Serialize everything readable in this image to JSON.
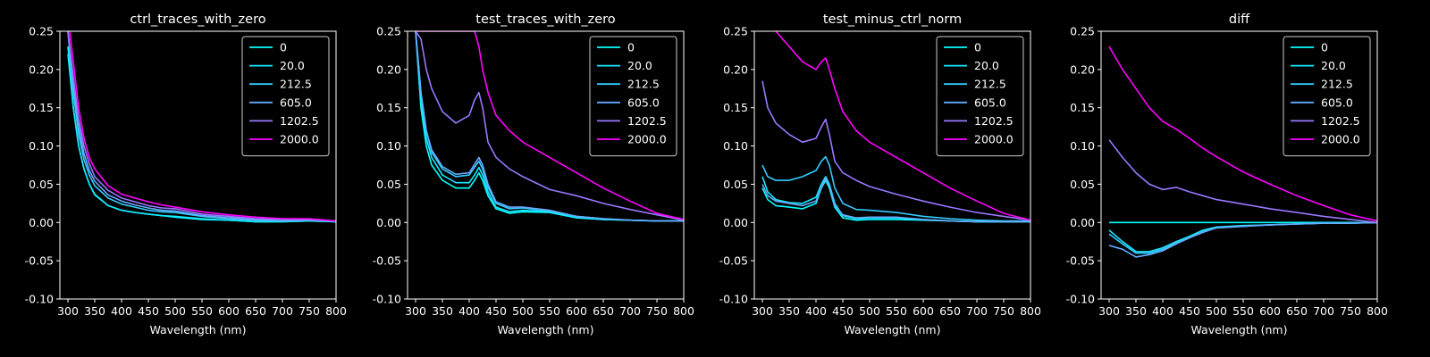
{
  "chart_data": [
    {
      "type": "line",
      "title": "ctrl_traces_with_zero",
      "xlabel": "Wavelength (nm)",
      "ylabel": "",
      "xlim": [
        285,
        800
      ],
      "ylim": [
        -0.1,
        0.25
      ],
      "xticks": [
        300,
        350,
        400,
        450,
        500,
        550,
        600,
        650,
        700,
        750,
        800
      ],
      "yticks": [
        -0.1,
        -0.05,
        0.0,
        0.05,
        0.1,
        0.15,
        0.2,
        0.25
      ],
      "legend_position": "top-right",
      "x": [
        300,
        310,
        320,
        330,
        340,
        350,
        375,
        400,
        425,
        450,
        475,
        500,
        550,
        600,
        650,
        700,
        750,
        800
      ],
      "series": [
        {
          "name": "0",
          "color": "#00ffff",
          "values": [
            0.23,
            0.15,
            0.1,
            0.07,
            0.05,
            0.037,
            0.022,
            0.016,
            0.013,
            0.011,
            0.009,
            0.007,
            0.004,
            0.003,
            0.001,
            0.001,
            0.002,
            0.001
          ]
        },
        {
          "name": "20.0",
          "color": "#16e9ff",
          "values": [
            0.22,
            0.15,
            0.1,
            0.07,
            0.05,
            0.036,
            0.022,
            0.016,
            0.013,
            0.011,
            0.009,
            0.008,
            0.005,
            0.003,
            0.001,
            0.001,
            0.002,
            0.001
          ]
        },
        {
          "name": "212.5",
          "color": "#33ccff",
          "values": [
            0.25,
            0.17,
            0.115,
            0.082,
            0.062,
            0.048,
            0.032,
            0.024,
            0.02,
            0.016,
            0.014,
            0.013,
            0.008,
            0.005,
            0.003,
            0.002,
            0.003,
            0.001
          ]
        },
        {
          "name": "605.0",
          "color": "#66aaff",
          "values": [
            0.25,
            0.18,
            0.125,
            0.09,
            0.068,
            0.054,
            0.036,
            0.028,
            0.023,
            0.019,
            0.016,
            0.015,
            0.009,
            0.006,
            0.004,
            0.003,
            0.003,
            0.002
          ]
        },
        {
          "name": "1202.5",
          "color": "#9a77ff",
          "values": [
            0.25,
            0.19,
            0.135,
            0.1,
            0.077,
            0.06,
            0.042,
            0.032,
            0.027,
            0.022,
            0.019,
            0.018,
            0.011,
            0.008,
            0.005,
            0.004,
            0.004,
            0.002
          ]
        },
        {
          "name": "2000.0",
          "color": "#ff00ff",
          "values": [
            0.27,
            0.21,
            0.15,
            0.11,
            0.085,
            0.07,
            0.048,
            0.037,
            0.032,
            0.027,
            0.023,
            0.02,
            0.014,
            0.01,
            0.007,
            0.005,
            0.005,
            0.002
          ]
        }
      ]
    },
    {
      "type": "line",
      "title": "test_traces_with_zero",
      "xlabel": "Wavelength (nm)",
      "ylabel": "",
      "xlim": [
        285,
        800
      ],
      "ylim": [
        -0.1,
        0.25
      ],
      "xticks": [
        300,
        350,
        400,
        450,
        500,
        550,
        600,
        650,
        700,
        750,
        800
      ],
      "yticks": [
        -0.1,
        -0.05,
        0.0,
        0.05,
        0.1,
        0.15,
        0.2,
        0.25
      ],
      "legend_position": "top-right",
      "x": [
        300,
        310,
        320,
        330,
        350,
        375,
        400,
        410,
        418,
        425,
        435,
        450,
        475,
        500,
        550,
        600,
        650,
        700,
        750,
        800
      ],
      "series": [
        {
          "name": "0",
          "color": "#00ffff",
          "values": [
            0.25,
            0.15,
            0.1,
            0.075,
            0.055,
            0.045,
            0.045,
            0.055,
            0.065,
            0.055,
            0.035,
            0.018,
            0.012,
            0.014,
            0.013,
            0.006,
            0.004,
            0.003,
            0.002,
            0.002
          ]
        },
        {
          "name": "20.0",
          "color": "#16e9ff",
          "values": [
            0.25,
            0.16,
            0.11,
            0.085,
            0.062,
            0.052,
            0.052,
            0.062,
            0.072,
            0.062,
            0.04,
            0.02,
            0.014,
            0.016,
            0.014,
            0.007,
            0.004,
            0.003,
            0.002,
            0.002
          ]
        },
        {
          "name": "212.5",
          "color": "#33ccff",
          "values": [
            0.25,
            0.17,
            0.12,
            0.092,
            0.07,
            0.06,
            0.062,
            0.072,
            0.08,
            0.07,
            0.046,
            0.025,
            0.018,
            0.019,
            0.015,
            0.008,
            0.005,
            0.003,
            0.002,
            0.002
          ]
        },
        {
          "name": "605.0",
          "color": "#66aaff",
          "values": [
            0.25,
            0.17,
            0.12,
            0.095,
            0.073,
            0.063,
            0.065,
            0.076,
            0.085,
            0.075,
            0.05,
            0.027,
            0.02,
            0.02,
            0.016,
            0.008,
            0.005,
            0.003,
            0.002,
            0.002
          ]
        },
        {
          "name": "1202.5",
          "color": "#9a77ff",
          "values": [
            0.25,
            0.24,
            0.2,
            0.175,
            0.145,
            0.13,
            0.14,
            0.16,
            0.17,
            0.15,
            0.105,
            0.085,
            0.07,
            0.06,
            0.043,
            0.035,
            0.025,
            0.017,
            0.01,
            0.003
          ]
        },
        {
          "name": "2000.0",
          "color": "#ff00ff",
          "values": [
            0.25,
            0.25,
            0.25,
            0.25,
            0.25,
            0.25,
            0.25,
            0.25,
            0.23,
            0.2,
            0.17,
            0.14,
            0.12,
            0.105,
            0.085,
            0.065,
            0.045,
            0.028,
            0.012,
            0.004
          ]
        }
      ]
    },
    {
      "type": "line",
      "title": "test_minus_ctrl_norm",
      "xlabel": "Wavelength (nm)",
      "ylabel": "",
      "xlim": [
        285,
        800
      ],
      "ylim": [
        -0.1,
        0.25
      ],
      "xticks": [
        300,
        350,
        400,
        450,
        500,
        550,
        600,
        650,
        700,
        750,
        800
      ],
      "yticks": [
        -0.1,
        -0.05,
        0.0,
        0.05,
        0.1,
        0.15,
        0.2,
        0.25
      ],
      "legend_position": "top-right",
      "x": [
        300,
        310,
        325,
        350,
        375,
        400,
        410,
        418,
        425,
        435,
        450,
        475,
        500,
        550,
        600,
        650,
        700,
        750,
        800
      ],
      "series": [
        {
          "name": "0",
          "color": "#00ffff",
          "values": [
            0.045,
            0.03,
            0.022,
            0.02,
            0.018,
            0.025,
            0.045,
            0.055,
            0.045,
            0.02,
            0.006,
            0.003,
            0.004,
            0.004,
            0.003,
            0.002,
            0.001,
            0.001,
            0.001
          ]
        },
        {
          "name": "20.0",
          "color": "#16e9ff",
          "values": [
            0.06,
            0.04,
            0.03,
            0.026,
            0.025,
            0.033,
            0.05,
            0.06,
            0.05,
            0.025,
            0.009,
            0.005,
            0.006,
            0.006,
            0.004,
            0.002,
            0.001,
            0.001,
            0.001
          ]
        },
        {
          "name": "212.5",
          "color": "#33ccff",
          "values": [
            0.075,
            0.06,
            0.055,
            0.055,
            0.06,
            0.068,
            0.08,
            0.086,
            0.075,
            0.045,
            0.025,
            0.017,
            0.016,
            0.013,
            0.008,
            0.005,
            0.003,
            0.002,
            0.002
          ]
        },
        {
          "name": "605.0",
          "color": "#66aaff",
          "values": [
            0.05,
            0.035,
            0.028,
            0.025,
            0.022,
            0.028,
            0.045,
            0.058,
            0.048,
            0.022,
            0.01,
            0.006,
            0.007,
            0.007,
            0.004,
            0.002,
            0.001,
            0.001,
            0.001
          ]
        },
        {
          "name": "1202.5",
          "color": "#9a77ff",
          "values": [
            0.185,
            0.15,
            0.13,
            0.115,
            0.105,
            0.11,
            0.125,
            0.135,
            0.115,
            0.08,
            0.065,
            0.055,
            0.047,
            0.037,
            0.028,
            0.02,
            0.013,
            0.008,
            0.003
          ]
        },
        {
          "name": "2000.0",
          "color": "#ff00ff",
          "values": [
            0.27,
            0.26,
            0.25,
            0.23,
            0.21,
            0.2,
            0.21,
            0.215,
            0.2,
            0.175,
            0.145,
            0.12,
            0.105,
            0.085,
            0.065,
            0.045,
            0.028,
            0.012,
            0.003
          ]
        }
      ]
    },
    {
      "type": "line",
      "title": "diff",
      "xlabel": "Wavelength (nm)",
      "ylabel": "",
      "xlim": [
        285,
        800
      ],
      "ylim": [
        -0.1,
        0.25
      ],
      "xticks": [
        300,
        350,
        400,
        450,
        500,
        550,
        600,
        650,
        700,
        750,
        800
      ],
      "yticks": [
        -0.1,
        -0.05,
        0.0,
        0.05,
        0.1,
        0.15,
        0.2,
        0.25
      ],
      "legend_position": "top-right",
      "x": [
        300,
        325,
        350,
        375,
        400,
        425,
        450,
        475,
        500,
        550,
        600,
        650,
        700,
        750,
        800
      ],
      "series": [
        {
          "name": "0",
          "color": "#00ffff",
          "values": [
            0.0,
            0.0,
            0.0,
            0.0,
            0.0,
            0.0,
            0.0,
            0.0,
            0.0,
            0.0,
            0.0,
            0.0,
            0.0,
            0.0,
            0.0
          ]
        },
        {
          "name": "20.0",
          "color": "#16e9ff",
          "values": [
            -0.01,
            -0.025,
            -0.038,
            -0.038,
            -0.033,
            -0.025,
            -0.018,
            -0.01,
            -0.006,
            -0.004,
            -0.003,
            -0.002,
            -0.001,
            -0.001,
            0.0
          ]
        },
        {
          "name": "212.5",
          "color": "#33ccff",
          "values": [
            -0.015,
            -0.028,
            -0.04,
            -0.04,
            -0.035,
            -0.027,
            -0.02,
            -0.012,
            -0.007,
            -0.005,
            -0.003,
            -0.002,
            -0.001,
            -0.001,
            0.0
          ]
        },
        {
          "name": "605.0",
          "color": "#66aaff",
          "values": [
            -0.03,
            -0.035,
            -0.045,
            -0.042,
            -0.037,
            -0.028,
            -0.02,
            -0.013,
            -0.007,
            -0.005,
            -0.003,
            -0.002,
            -0.001,
            -0.001,
            0.0
          ]
        },
        {
          "name": "1202.5",
          "color": "#9a77ff",
          "values": [
            0.108,
            0.085,
            0.065,
            0.05,
            0.043,
            0.046,
            0.04,
            0.035,
            0.03,
            0.024,
            0.018,
            0.013,
            0.008,
            0.004,
            0.0
          ]
        },
        {
          "name": "2000.0",
          "color": "#ff00ff",
          "values": [
            0.23,
            0.2,
            0.175,
            0.15,
            0.132,
            0.122,
            0.11,
            0.097,
            0.086,
            0.066,
            0.05,
            0.035,
            0.022,
            0.01,
            0.002
          ]
        }
      ]
    }
  ]
}
